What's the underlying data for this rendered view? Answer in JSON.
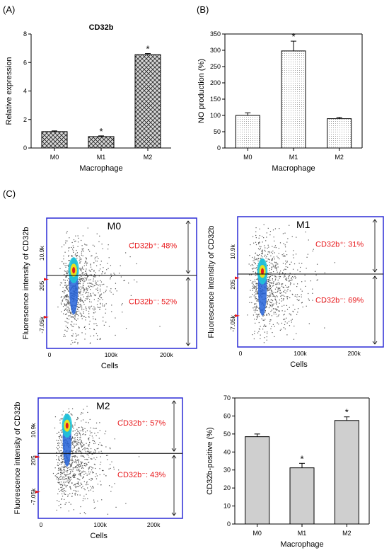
{
  "panels": {
    "a": "(A)",
    "b": "(B)",
    "c": "(C)"
  },
  "colors": {
    "bar_fill": "#cfcfcf",
    "gate_line": "#000000",
    "plot_border": "#2b2bd6",
    "label_red": "#e8191c",
    "gate_marker": "#e8191c"
  },
  "chart_data": [
    {
      "id": "A",
      "type": "bar",
      "title": "CD32b",
      "xlabel": "Macrophage",
      "ylabel": "Relative expression",
      "categories": [
        "M0",
        "M1",
        "M2"
      ],
      "values": [
        1.15,
        0.8,
        6.55
      ],
      "errors": [
        0.05,
        0.05,
        0.08
      ],
      "significance": [
        "",
        "*",
        "*"
      ],
      "ylim": [
        0,
        8
      ],
      "yticks": [
        "0",
        "2",
        "4",
        "6",
        "8"
      ],
      "pattern": "crosshatch",
      "grid": false
    },
    {
      "id": "B",
      "type": "bar",
      "title": "",
      "xlabel": "Macrophage",
      "ylabel": "NO production (%)",
      "categories": [
        "M0",
        "M1",
        "M2"
      ],
      "values": [
        100,
        298,
        90
      ],
      "errors": [
        8,
        30,
        4
      ],
      "significance": [
        "",
        "*",
        ""
      ],
      "ylim": [
        0,
        350
      ],
      "yticks": [
        "0",
        "50",
        "100",
        "150",
        "200",
        "250",
        "300",
        "350"
      ],
      "pattern": "dots",
      "grid": false
    },
    {
      "id": "C-bar",
      "type": "bar",
      "title": "",
      "xlabel": "Macrophage",
      "ylabel": "CD32b-positive (%)",
      "categories": [
        "M0",
        "M1",
        "M2"
      ],
      "values": [
        48.5,
        31.2,
        57.5
      ],
      "errors": [
        1.5,
        2.5,
        2.0
      ],
      "significance": [
        "",
        "*",
        "*"
      ],
      "ylim": [
        0,
        70
      ],
      "yticks": [
        "0",
        "10",
        "20",
        "30",
        "40",
        "50",
        "60",
        "70"
      ],
      "pattern": "solid",
      "grid": false
    },
    {
      "id": "C-flow",
      "type": "scatter",
      "xlabel": "Cells",
      "ylabel": "Fluorescence intensity of CD32b",
      "xticks": [
        "0",
        "100k",
        "200k"
      ],
      "yticks": [
        "10.9k",
        "205",
        "-7.05k"
      ],
      "plots": [
        {
          "name": "M0",
          "pos": "CD32b⁺: 48%",
          "neg": "CD32b⁻: 52%",
          "pos_pct": 48,
          "neg_pct": 52
        },
        {
          "name": "M1",
          "pos": "CD32b⁺: 31%",
          "neg": "CD32b⁻: 69%",
          "pos_pct": 31,
          "neg_pct": 69
        },
        {
          "name": "M2",
          "pos": "CD32b⁺: 57%",
          "neg": "CD32b⁻: 43%",
          "pos_pct": 57,
          "neg_pct": 43
        }
      ]
    }
  ]
}
